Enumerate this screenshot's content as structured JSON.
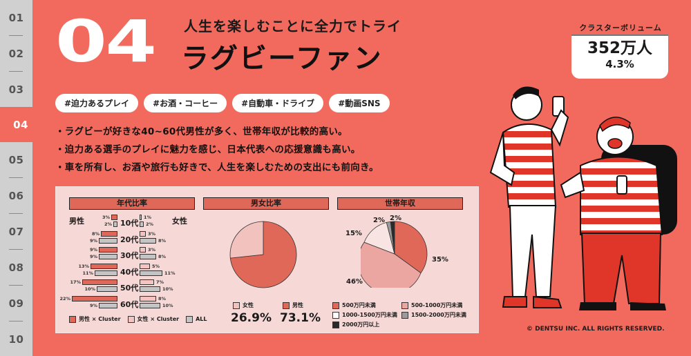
{
  "sidebar": {
    "items": [
      {
        "label": "01",
        "active": false
      },
      {
        "label": "02",
        "active": false
      },
      {
        "label": "03",
        "active": false
      },
      {
        "label": "04",
        "active": true
      },
      {
        "label": "05",
        "active": false
      },
      {
        "label": "06",
        "active": false
      },
      {
        "label": "07",
        "active": false
      },
      {
        "label": "08",
        "active": false
      },
      {
        "label": "09",
        "active": false
      },
      {
        "label": "10",
        "active": false
      }
    ]
  },
  "header": {
    "number": "04",
    "subtitle": "人生を楽しむことに全力でトライ",
    "title": "ラグビーファン"
  },
  "volume": {
    "label": "クラスターボリューム",
    "count": "352万人",
    "share": "4.3%"
  },
  "tags": [
    "#迫力あるプレイ",
    "#お酒・コーヒー",
    "#自動車・ドライブ",
    "#動画SNS"
  ],
  "bullets": [
    "・ラグビーが好きな40~60代男性が多く、世帯年収が比較的高い。",
    "・迫力ある選手のプレイに魅力を感じ、日本代表への応援意識も高い。",
    "・車を所有し、お酒や旅行も好きで、人生を楽しむための支出にも前向き。"
  ],
  "age_chart": {
    "title": "年代比率",
    "male_label": "男性",
    "female_label": "女性",
    "rows": [
      {
        "age": "10代",
        "male_cluster": 3,
        "male_all": 2,
        "female_cluster": 1,
        "female_all": 2,
        "mc": "3%",
        "ma": "2%",
        "fc": "1%",
        "fa": "2%"
      },
      {
        "age": "20代",
        "male_cluster": 8,
        "male_all": 9,
        "female_cluster": 3,
        "female_all": 8,
        "mc": "8%",
        "ma": "9%",
        "fc": "3%",
        "fa": "8%"
      },
      {
        "age": "30代",
        "male_cluster": 9,
        "male_all": 9,
        "female_cluster": 3,
        "female_all": 8,
        "mc": "9%",
        "ma": "9%",
        "fc": "3%",
        "fa": "8%"
      },
      {
        "age": "40代",
        "male_cluster": 13,
        "male_all": 11,
        "female_cluster": 5,
        "female_all": 11,
        "mc": "13%",
        "ma": "11%",
        "fc": "5%",
        "fa": "11%"
      },
      {
        "age": "50代",
        "male_cluster": 17,
        "male_all": 10,
        "female_cluster": 7,
        "female_all": 10,
        "mc": "17%",
        "ma": "10%",
        "fc": "7%",
        "fa": "10%"
      },
      {
        "age": "60代",
        "male_cluster": 22,
        "male_all": 9,
        "female_cluster": 8,
        "female_all": 10,
        "mc": "22%",
        "ma": "9%",
        "fc": "8%",
        "fa": "10%"
      }
    ],
    "legend": [
      "男性 × Cluster",
      "女性 × Cluster",
      "ALL"
    ]
  },
  "gender_chart": {
    "title": "男女比率",
    "female_label": "女性",
    "male_label": "男性",
    "female_pct": "26.9%",
    "male_pct": "73.1%"
  },
  "income_chart": {
    "title": "世帯年収",
    "slice_labels": [
      "35%",
      "46%",
      "15%",
      "2%",
      "2%"
    ],
    "legend": [
      "500万円未満",
      "500-1000万円未満",
      "1000-1500万円未満",
      "1500-2000万円未満",
      "2000万円以上"
    ]
  },
  "colors": {
    "background": "#f26a5d",
    "sidebar": "#d0d0d0",
    "panel": "#f6d8d6",
    "male": "#e06858",
    "female": "#f6c4c0",
    "all": "#c4c4c4"
  },
  "copyright": "© DENTSU INC. ALL RIGHTS RESERVED.",
  "chart_data": [
    {
      "type": "bar",
      "title": "年代比率",
      "categories": [
        "10代",
        "20代",
        "30代",
        "40代",
        "50代",
        "60代"
      ],
      "series": [
        {
          "name": "男性 × Cluster",
          "values": [
            3,
            8,
            9,
            13,
            17,
            22
          ]
        },
        {
          "name": "男性 ALL",
          "values": [
            2,
            9,
            9,
            11,
            10,
            9
          ]
        },
        {
          "name": "女性 × Cluster",
          "values": [
            1,
            3,
            3,
            5,
            7,
            8
          ]
        },
        {
          "name": "女性 ALL",
          "values": [
            2,
            8,
            8,
            11,
            10,
            10
          ]
        }
      ],
      "xlabel": "",
      "ylabel": "%"
    },
    {
      "type": "pie",
      "title": "男女比率",
      "categories": [
        "女性",
        "男性"
      ],
      "values": [
        26.9,
        73.1
      ]
    },
    {
      "type": "pie",
      "title": "世帯年収",
      "categories": [
        "500万円未満",
        "500-1000万円未満",
        "1000-1500万円未満",
        "1500-2000万円未満",
        "2000万円以上"
      ],
      "values": [
        35,
        46,
        15,
        2,
        2
      ]
    }
  ]
}
